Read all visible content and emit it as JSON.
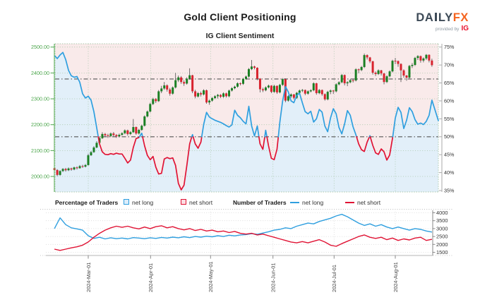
{
  "header": {
    "title": "Gold Client Positioning",
    "subtitle": "IG Client Sentiment"
  },
  "logo": {
    "brand_left": "DA",
    "brand_right": "LY",
    "brand_fx": "FX",
    "tagline": "provided by",
    "tagline_brand": "IG"
  },
  "legend": {
    "group1_label": "Percentage of Traders",
    "group1_net_long": "net long",
    "group1_net_short": "net short",
    "group2_label": "Number of Traders",
    "group2_net_long": "net long",
    "group2_net_short": "net short"
  },
  "colors": {
    "sent_blue": "#2f9fdf",
    "sent_red": "#e01334",
    "candle_up": "#1a7f23",
    "candle_down": "#d8232e",
    "wick": "#4a4a4a",
    "bg_above": "#f9eaea",
    "bg_below": "#e2eff9",
    "grid_green": "#a8c6a8",
    "axis_green": "#4aa54a",
    "ref_line": "#555555",
    "axis_gray": "#aaaaaa",
    "grid_gray": "#d8d8d8",
    "text_gray": "#444444",
    "tick_text": "#333333"
  },
  "chart_data": [
    {
      "type": "candlestick+line",
      "title": "IG Client Sentiment",
      "y_axis_left": {
        "tick_labels": [
          "2500.00",
          "2400.00",
          "2300.00",
          "2200.00",
          "2100.00",
          "2000.00"
        ],
        "tick_values": [
          2500,
          2400,
          2300,
          2200,
          2100,
          2000
        ],
        "range": [
          1940,
          2513
        ]
      },
      "y_axis_right": {
        "tick_labels": [
          "75%",
          "70%",
          "65%",
          "60%",
          "55%",
          "50%",
          "45%",
          "40%",
          "35%"
        ],
        "tick_values": [
          75,
          70,
          65,
          60,
          55,
          50,
          45,
          40,
          35
        ],
        "range": [
          34.6,
          75.9
        ]
      },
      "x_ticks": [
        "2024-Mar-01",
        "2024-Apr-01",
        "2024-May-01",
        "2024-Jun-01",
        "2024-Jul-01",
        "2024-Aug-01"
      ],
      "reference_lines": [
        {
          "axis": "percent",
          "value": 50
        },
        {
          "axis": "price",
          "value": 2376.5
        }
      ],
      "percent_net_long": [
        72.5,
        71.8,
        72.8,
        73.5,
        71.5,
        68.5,
        67.0,
        66.6,
        66.8,
        65.2,
        62.0,
        60.8,
        61.3,
        60.2,
        57.0,
        52.5,
        48.0,
        45.8,
        45.1,
        45.0,
        45.3,
        45.1,
        45.4,
        45.2,
        45.2,
        44.0,
        42.7,
        43.5,
        47.0,
        49.5,
        49.8,
        51.0,
        47.5,
        44.8,
        43.6,
        44.5,
        41.5,
        39.6,
        39.8,
        43.8,
        44.2,
        43.9,
        44.1,
        42.0,
        37.0,
        35.2,
        36.5,
        42.0,
        48.0,
        50.6,
        48.0,
        46.8,
        48.5,
        53.5,
        56.8,
        55.5,
        55.0,
        54.6,
        54.3,
        54.0,
        53.6,
        53.1,
        52.7,
        53.3,
        57.4,
        56.0,
        55.3,
        54.3,
        53.6,
        58.5,
        53.0,
        50.2,
        53.0,
        48.0,
        46.5,
        51.8,
        47.5,
        44.0,
        43.6,
        46.5,
        54.0,
        60.0,
        64.0,
        62.5,
        60.0,
        59.5,
        61.5,
        62.2,
        59.5,
        57.0,
        56.4,
        57.1,
        54.1,
        55.0,
        57.6,
        56.9,
        53.0,
        51.4,
        55.2,
        57.8,
        56.4,
        52.6,
        50.8,
        53.6,
        57.3,
        56.0,
        52.8,
        50.6,
        48.0,
        46.4,
        45.9,
        48.5,
        50.3,
        47.6,
        45.5,
        45.1,
        46.6,
        45.8,
        43.5,
        44.9,
        49.5,
        55.2,
        58.2,
        56.8,
        52.3,
        54.6,
        58.1,
        57.0,
        54.8,
        53.5,
        53.8,
        53.4,
        54.3,
        56.0,
        60.2,
        54.5
      ],
      "candles": [
        [
          2032,
          2036,
          1995,
          2025
        ],
        [
          2025,
          2028,
          2001,
          2006
        ],
        [
          2006,
          2024,
          2003,
          2021
        ],
        [
          2021,
          2032,
          2017,
          2029
        ],
        [
          2029,
          2033,
          2019,
          2024
        ],
        [
          2024,
          2035,
          2021,
          2031
        ],
        [
          2031,
          2034,
          2022,
          2027
        ],
        [
          2027,
          2038,
          2024,
          2035
        ],
        [
          2035,
          2039,
          2027,
          2032
        ],
        [
          2032,
          2044,
          2030,
          2040
        ],
        [
          2040,
          2045,
          2033,
          2038
        ],
        [
          2038,
          2048,
          2035,
          2044
        ],
        [
          2044,
          2088,
          2042,
          2082
        ],
        [
          2082,
          2098,
          2079,
          2094
        ],
        [
          2094,
          2117,
          2091,
          2112
        ],
        [
          2112,
          2136,
          2109,
          2130
        ],
        [
          2130,
          2152,
          2127,
          2148
        ],
        [
          2148,
          2171,
          2145,
          2164
        ],
        [
          2164,
          2168,
          2153,
          2159
        ],
        [
          2159,
          2165,
          2149,
          2156
        ],
        [
          2156,
          2170,
          2152,
          2166
        ],
        [
          2166,
          2172,
          2155,
          2160
        ],
        [
          2160,
          2164,
          2149,
          2155
        ],
        [
          2155,
          2166,
          2151,
          2161
        ],
        [
          2161,
          2171,
          2157,
          2167
        ],
        [
          2167,
          2182,
          2163,
          2178
        ],
        [
          2178,
          2181,
          2158,
          2164
        ],
        [
          2164,
          2175,
          2160,
          2171
        ],
        [
          2171,
          2222,
          2168,
          2191
        ],
        [
          2191,
          2193,
          2161,
          2166
        ],
        [
          2166,
          2184,
          2162,
          2180
        ],
        [
          2180,
          2200,
          2176,
          2196
        ],
        [
          2196,
          2236,
          2193,
          2232
        ],
        [
          2232,
          2255,
          2228,
          2251
        ],
        [
          2251,
          2285,
          2247,
          2280
        ],
        [
          2280,
          2304,
          2276,
          2299
        ],
        [
          2299,
          2303,
          2284,
          2291
        ],
        [
          2291,
          2334,
          2288,
          2329
        ],
        [
          2329,
          2350,
          2322,
          2340
        ],
        [
          2340,
          2365,
          2335,
          2352
        ],
        [
          2352,
          2356,
          2328,
          2336
        ],
        [
          2336,
          2342,
          2312,
          2320
        ],
        [
          2320,
          2348,
          2316,
          2344
        ],
        [
          2344,
          2400,
          2340,
          2372
        ],
        [
          2372,
          2390,
          2365,
          2383
        ],
        [
          2383,
          2388,
          2358,
          2365
        ],
        [
          2365,
          2372,
          2350,
          2359
        ],
        [
          2359,
          2383,
          2355,
          2378
        ],
        [
          2378,
          2418,
          2374,
          2391
        ],
        [
          2391,
          2393,
          2322,
          2329
        ],
        [
          2329,
          2335,
          2302,
          2309
        ],
        [
          2309,
          2326,
          2305,
          2322
        ],
        [
          2322,
          2328,
          2309,
          2317
        ],
        [
          2317,
          2337,
          2313,
          2333
        ],
        [
          2333,
          2336,
          2281,
          2286
        ],
        [
          2286,
          2297,
          2277,
          2293
        ],
        [
          2293,
          2307,
          2289,
          2303
        ],
        [
          2303,
          2314,
          2299,
          2310
        ],
        [
          2310,
          2319,
          2301,
          2315
        ],
        [
          2315,
          2318,
          2303,
          2308
        ],
        [
          2308,
          2325,
          2304,
          2321
        ],
        [
          2321,
          2324,
          2305,
          2310
        ],
        [
          2310,
          2336,
          2306,
          2332
        ],
        [
          2332,
          2345,
          2328,
          2341
        ],
        [
          2341,
          2351,
          2337,
          2347
        ],
        [
          2347,
          2364,
          2343,
          2360
        ],
        [
          2360,
          2363,
          2352,
          2358
        ],
        [
          2358,
          2381,
          2354,
          2377
        ],
        [
          2377,
          2390,
          2373,
          2386
        ],
        [
          2386,
          2419,
          2382,
          2415
        ],
        [
          2415,
          2450,
          2411,
          2425
        ],
        [
          2425,
          2428,
          2414,
          2420
        ],
        [
          2420,
          2422,
          2372,
          2378
        ],
        [
          2378,
          2380,
          2325,
          2337
        ],
        [
          2337,
          2343,
          2326,
          2333
        ],
        [
          2333,
          2348,
          2329,
          2344
        ],
        [
          2344,
          2355,
          2340,
          2351
        ],
        [
          2351,
          2353,
          2322,
          2327
        ],
        [
          2327,
          2354,
          2323,
          2350
        ],
        [
          2350,
          2352,
          2319,
          2325
        ],
        [
          2325,
          2358,
          2321,
          2354
        ],
        [
          2354,
          2380,
          2350,
          2376
        ],
        [
          2376,
          2379,
          2287,
          2293
        ],
        [
          2293,
          2314,
          2289,
          2310
        ],
        [
          2310,
          2321,
          2304,
          2317
        ],
        [
          2317,
          2319,
          2298,
          2304
        ],
        [
          2304,
          2327,
          2300,
          2323
        ],
        [
          2323,
          2336,
          2319,
          2332
        ],
        [
          2332,
          2338,
          2326,
          2334
        ],
        [
          2334,
          2336,
          2314,
          2320
        ],
        [
          2320,
          2333,
          2316,
          2329
        ],
        [
          2329,
          2337,
          2325,
          2333
        ],
        [
          2333,
          2364,
          2329,
          2360
        ],
        [
          2360,
          2362,
          2316,
          2322
        ],
        [
          2322,
          2338,
          2318,
          2334
        ],
        [
          2334,
          2336,
          2312,
          2318
        ],
        [
          2318,
          2321,
          2293,
          2298
        ],
        [
          2298,
          2331,
          2294,
          2327
        ],
        [
          2327,
          2336,
          2318,
          2332
        ],
        [
          2332,
          2334,
          2319,
          2329
        ],
        [
          2329,
          2360,
          2325,
          2356
        ],
        [
          2356,
          2368,
          2352,
          2364
        ],
        [
          2364,
          2396,
          2360,
          2392
        ],
        [
          2392,
          2394,
          2352,
          2360
        ],
        [
          2360,
          2368,
          2349,
          2364
        ],
        [
          2364,
          2376,
          2360,
          2372
        ],
        [
          2372,
          2375,
          2363,
          2371
        ],
        [
          2371,
          2418,
          2367,
          2414
        ],
        [
          2414,
          2417,
          2399,
          2411
        ],
        [
          2411,
          2427,
          2407,
          2423
        ],
        [
          2423,
          2475,
          2419,
          2469
        ],
        [
          2469,
          2472,
          2452,
          2460
        ],
        [
          2460,
          2462,
          2438,
          2445
        ],
        [
          2445,
          2447,
          2394,
          2401
        ],
        [
          2401,
          2406,
          2388,
          2396
        ],
        [
          2396,
          2414,
          2392,
          2410
        ],
        [
          2410,
          2412,
          2390,
          2398
        ],
        [
          2398,
          2400,
          2356,
          2365
        ],
        [
          2365,
          2391,
          2361,
          2387
        ],
        [
          2387,
          2410,
          2383,
          2406
        ],
        [
          2406,
          2451,
          2402,
          2447
        ],
        [
          2447,
          2458,
          2434,
          2446
        ],
        [
          2446,
          2448,
          2424,
          2435
        ],
        [
          2435,
          2437,
          2365,
          2410
        ],
        [
          2410,
          2414,
          2382,
          2390
        ],
        [
          2390,
          2392,
          2370,
          2382
        ],
        [
          2382,
          2431,
          2378,
          2427
        ],
        [
          2427,
          2438,
          2419,
          2431
        ],
        [
          2431,
          2462,
          2427,
          2458
        ],
        [
          2458,
          2469,
          2450,
          2465
        ],
        [
          2465,
          2467,
          2440,
          2448
        ],
        [
          2448,
          2460,
          2441,
          2456
        ],
        [
          2456,
          2473,
          2450,
          2470
        ],
        [
          2470,
          2472,
          2441,
          2448
        ],
        [
          2448,
          2455,
          2424,
          2430
        ]
      ]
    },
    {
      "type": "line",
      "y_ticks": [
        4000,
        3500,
        3000,
        2500,
        2000,
        1500
      ],
      "x_ticks": [
        "2024-Mar-01",
        "2024-Apr-01",
        "2024-May-01",
        "2024-Jun-01",
        "2024-Jul-01",
        "2024-Aug-01"
      ],
      "series": [
        {
          "name": "net long",
          "color": "#2f9fdf",
          "values": [
            3000,
            3680,
            3250,
            3050,
            2980,
            2900,
            2550,
            2380,
            2450,
            2350,
            2420,
            2360,
            2400,
            2350,
            2430,
            2400,
            2360,
            2420,
            2380,
            2440,
            2400,
            2460,
            2420,
            2480,
            2430,
            2500,
            2460,
            2520,
            2480,
            2550,
            2500,
            2580,
            2540,
            2600,
            2620,
            2680,
            2640,
            2720,
            2800,
            2900,
            2950,
            3050,
            3000,
            3150,
            3250,
            3350,
            3300,
            3450,
            3550,
            3650,
            3800,
            3900,
            3750,
            3550,
            3350,
            3200,
            3300,
            3150,
            3250,
            3100,
            3000,
            3100,
            3000,
            2900,
            3000,
            2950,
            2850,
            2780
          ]
        },
        {
          "name": "net short",
          "color": "#e01334",
          "values": [
            1700,
            1620,
            1700,
            1780,
            1850,
            1950,
            2150,
            2450,
            2700,
            2900,
            3050,
            3150,
            3080,
            3150,
            3050,
            2980,
            3100,
            3000,
            3120,
            3180,
            3050,
            3120,
            3000,
            2920,
            3000,
            2880,
            2950,
            2850,
            2900,
            2800,
            2850,
            2750,
            2820,
            2700,
            2650,
            2700,
            2600,
            2650,
            2550,
            2450,
            2350,
            2250,
            2150,
            2100,
            2180,
            2100,
            2200,
            2300,
            2150,
            1950,
            1880,
            2050,
            2200,
            2350,
            2500,
            2600,
            2450,
            2380,
            2450,
            2300,
            2400,
            2250,
            2350,
            2280,
            2400,
            2450,
            2250,
            2320
          ]
        }
      ]
    }
  ]
}
